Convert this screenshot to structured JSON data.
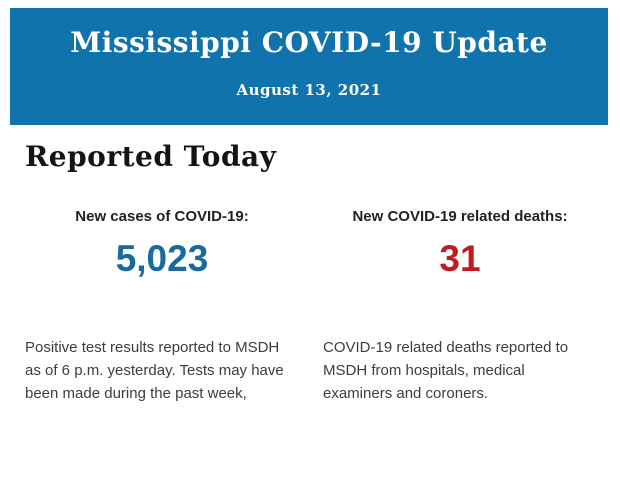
{
  "header": {
    "title": "Mississippi COVID-19 Update",
    "date": "August 13, 2021",
    "background_color": "#1173ab",
    "text_color": "#ffffff"
  },
  "section": {
    "heading": "Reported Today"
  },
  "stats": [
    {
      "label": "New cases of COVID-19:",
      "value": "5,023",
      "value_color": "#1a6a9e",
      "description": "Positive test results reported to MSDH as of 6 p.m. yesterday. Tests may have been made during the past week,"
    },
    {
      "label": "New COVID-19 related deaths:",
      "value": "31",
      "value_color": "#c11b21",
      "description": "COVID-19 related deaths reported to MSDH from hospitals, medical examiners and coroners."
    }
  ]
}
